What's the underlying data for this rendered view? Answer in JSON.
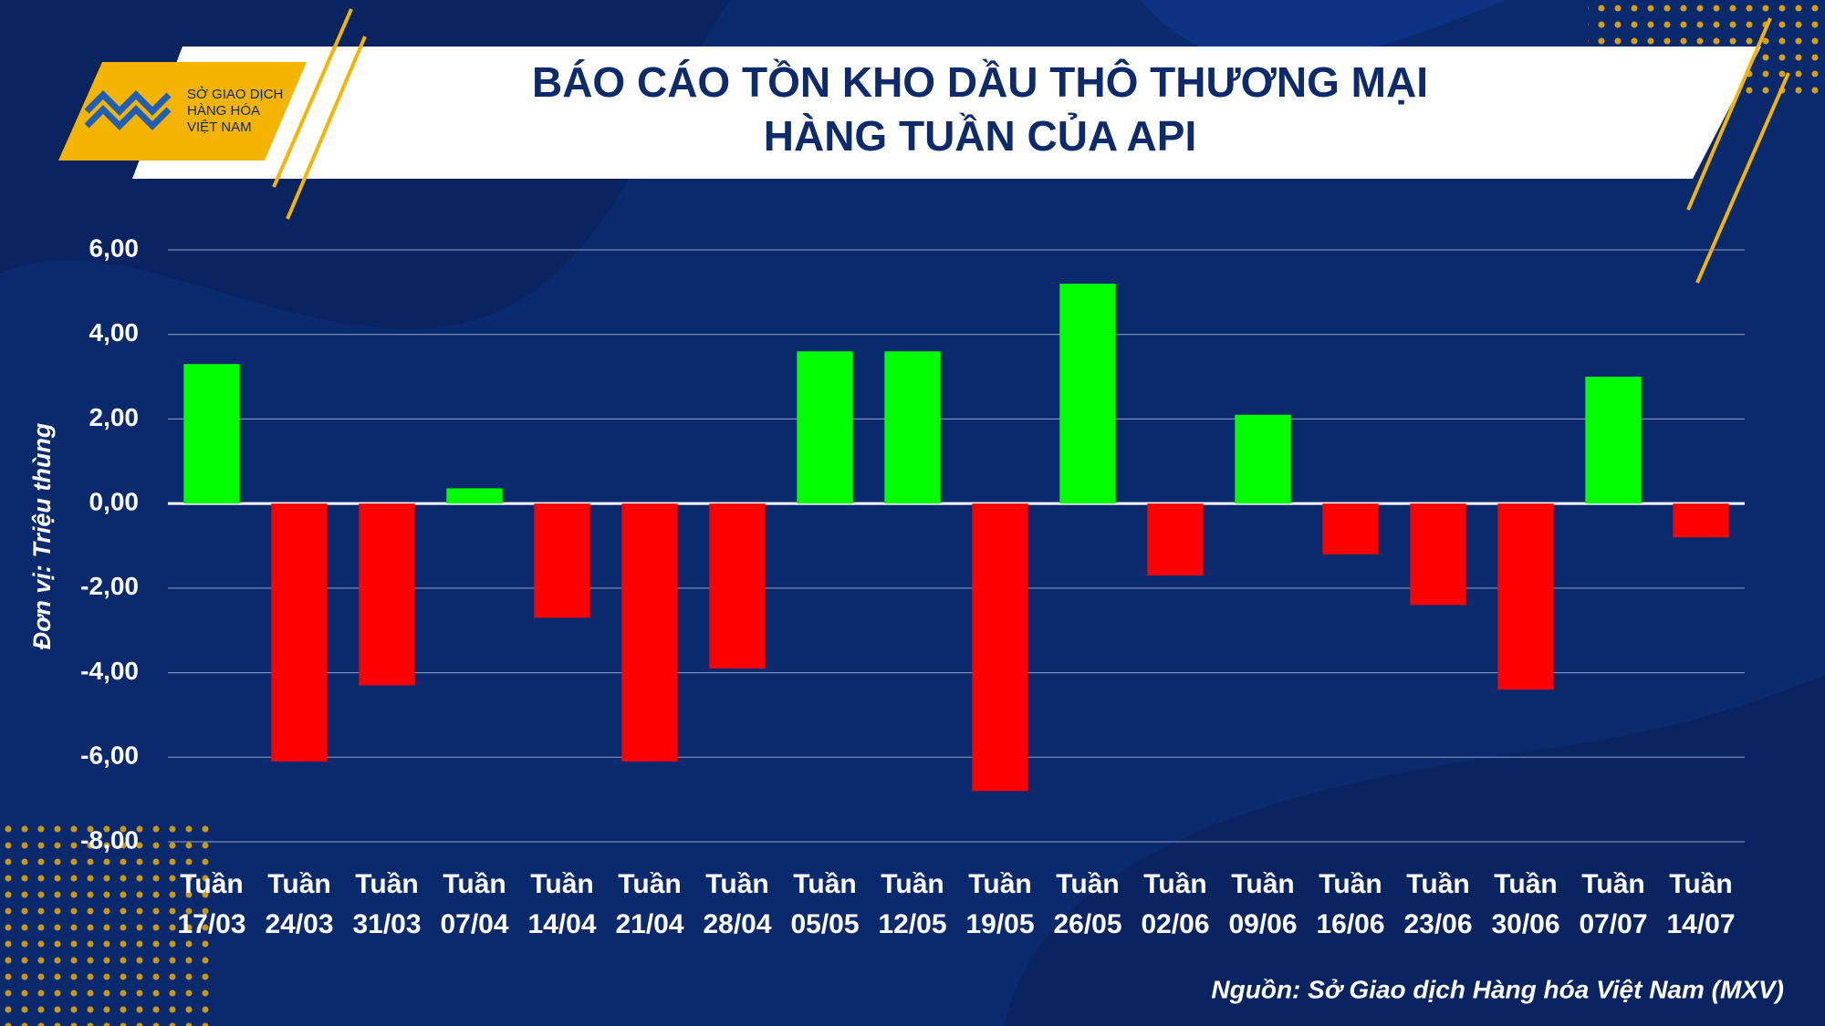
{
  "header": {
    "logo_lines": [
      "SỞ GIAO DỊCH",
      "HÀNG HÓA",
      "VIỆT NAM"
    ]
  },
  "chart_data": {
    "type": "bar",
    "title": [
      "BÁO CÁO TỒN KHO DẦU THÔ THƯƠNG MẠI",
      "HÀNG TUẦN CỦA API"
    ],
    "y_label": "Đơn vị: Triệu thùng",
    "source": "Nguồn: Sở Giao dịch Hàng hóa Việt Nam (MXV)",
    "categories": [
      "Tuần 17/03",
      "Tuần 24/03",
      "Tuần 31/03",
      "Tuần 07/04",
      "Tuần 14/04",
      "Tuần 21/04",
      "Tuần 28/04",
      "Tuần 05/05",
      "Tuần 12/05",
      "Tuần 19/05",
      "Tuần 26/05",
      "Tuần 02/06",
      "Tuần 09/06",
      "Tuần 16/06",
      "Tuần 23/06",
      "Tuần 30/06",
      "Tuần 07/07",
      "Tuần 14/07"
    ],
    "values": [
      3.3,
      -6.1,
      -4.3,
      0.36,
      -2.7,
      -6.1,
      -3.9,
      3.6,
      3.6,
      -6.8,
      5.2,
      -1.7,
      2.1,
      -1.2,
      -2.4,
      -4.4,
      3.0,
      -0.8
    ],
    "color_positive": "#00ff00",
    "color_negative": "#ff0000",
    "ylim": [
      -8,
      6
    ],
    "yticks": [
      {
        "value": -8,
        "label": "-8,00"
      },
      {
        "value": -6,
        "label": "-6,00"
      },
      {
        "value": -4,
        "label": "-4,00"
      },
      {
        "value": -2,
        "label": "-2,00"
      },
      {
        "value": 0,
        "label": "0,00"
      },
      {
        "value": 2,
        "label": "2,00"
      },
      {
        "value": 4,
        "label": "4,00"
      },
      {
        "value": 6,
        "label": "6,00"
      }
    ],
    "grid": true
  }
}
